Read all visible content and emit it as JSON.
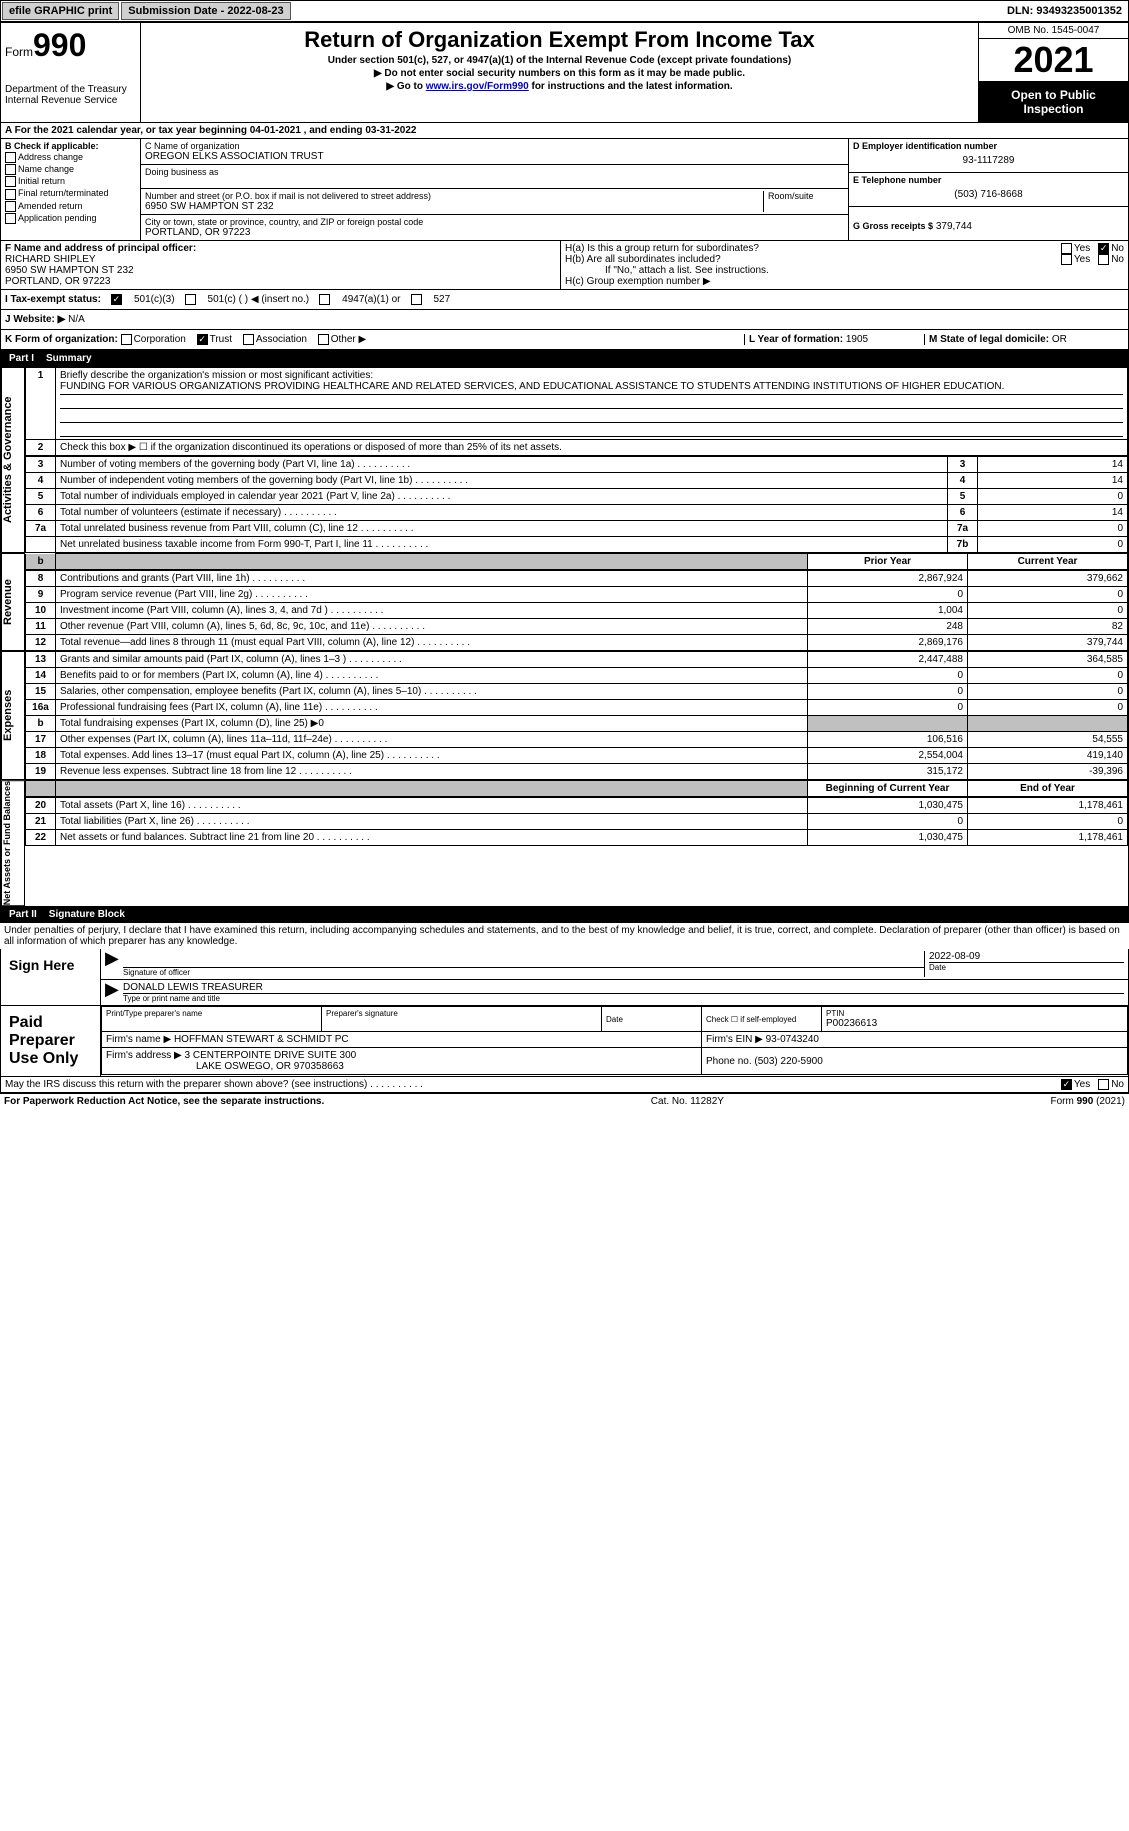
{
  "top": {
    "efile": "efile GRAPHIC print",
    "sub_date_label": "Submission Date - 2022-08-23",
    "dln": "DLN: 93493235001352"
  },
  "header": {
    "form_label": "Form",
    "form_num": "990",
    "dept": "Department of the Treasury Internal Revenue Service",
    "title": "Return of Organization Exempt From Income Tax",
    "sub1": "Under section 501(c), 527, or 4947(a)(1) of the Internal Revenue Code (except private foundations)",
    "sub2": "▶ Do not enter social security numbers on this form as it may be made public.",
    "sub3_pre": "▶ Go to ",
    "sub3_link": "www.irs.gov/Form990",
    "sub3_post": " for instructions and the latest information.",
    "omb": "OMB No. 1545-0047",
    "year": "2021",
    "open": "Open to Public Inspection"
  },
  "a": {
    "text": "A For the 2021 calendar year, or tax year beginning 04-01-2021   , and ending 03-31-2022"
  },
  "b": {
    "label": "B Check if applicable:",
    "addr": "Address change",
    "name": "Name change",
    "init": "Initial return",
    "final": "Final return/terminated",
    "amend": "Amended return",
    "app": "Application pending"
  },
  "c": {
    "name_label": "C Name of organization",
    "name": "OREGON ELKS ASSOCIATION TRUST",
    "dba_label": "Doing business as",
    "dba": "",
    "street_label": "Number and street (or P.O. box if mail is not delivered to street address)",
    "street": "6950 SW HAMPTON ST 232",
    "room_label": "Room/suite",
    "city_label": "City or town, state or province, country, and ZIP or foreign postal code",
    "city": "PORTLAND, OR  97223"
  },
  "d": {
    "ein_label": "D Employer identification number",
    "ein": "93-1117289",
    "phone_label": "E Telephone number",
    "phone": "(503) 716-8668",
    "gross_label": "G Gross receipts $",
    "gross": "379,744"
  },
  "f": {
    "label": "F Name and address of principal officer:",
    "name": "RICHARD SHIPLEY",
    "street": "6950 SW HAMPTON ST 232",
    "city": "PORTLAND, OR  97223"
  },
  "h": {
    "a": "H(a)  Is this a group return for subordinates?",
    "b": "H(b)  Are all subordinates included?",
    "b_note": "If \"No,\" attach a list. See instructions.",
    "c": "H(c)  Group exemption number ▶",
    "yes": "Yes",
    "no": "No"
  },
  "i": {
    "label": "I  Tax-exempt status:",
    "o1": "501(c)(3)",
    "o2": "501(c) (  ) ◀ (insert no.)",
    "o3": "4947(a)(1) or",
    "o4": "527"
  },
  "j": {
    "label": "J  Website: ▶",
    "val": "N/A"
  },
  "k": {
    "label": "K Form of organization:",
    "corp": "Corporation",
    "trust": "Trust",
    "assoc": "Association",
    "other": "Other ▶",
    "l_label": "L Year of formation:",
    "l_val": "1905",
    "m_label": "M State of legal domicile:",
    "m_val": "OR"
  },
  "part1": {
    "num": "Part I",
    "title": "Summary"
  },
  "summary": {
    "l1_label": "Briefly describe the organization's mission or most significant activities:",
    "l1_text": "FUNDING FOR VARIOUS ORGANIZATIONS PROVIDING HEALTHCARE AND RELATED SERVICES, AND EDUCATIONAL ASSISTANCE TO STUDENTS ATTENDING INSTITUTIONS OF HIGHER EDUCATION.",
    "l2": "Check this box ▶ ☐ if the organization discontinued its operations or disposed of more than 25% of its net assets.",
    "rows": [
      {
        "n": "3",
        "d": "Number of voting members of the governing body (Part VI, line 1a)",
        "lbl": "3",
        "v": "14"
      },
      {
        "n": "4",
        "d": "Number of independent voting members of the governing body (Part VI, line 1b)",
        "lbl": "4",
        "v": "14"
      },
      {
        "n": "5",
        "d": "Total number of individuals employed in calendar year 2021 (Part V, line 2a)",
        "lbl": "5",
        "v": "0"
      },
      {
        "n": "6",
        "d": "Total number of volunteers (estimate if necessary)",
        "lbl": "6",
        "v": "14"
      },
      {
        "n": "7a",
        "d": "Total unrelated business revenue from Part VIII, column (C), line 12",
        "lbl": "7a",
        "v": "0"
      },
      {
        "n": "",
        "d": "Net unrelated business taxable income from Form 990-T, Part I, line 11",
        "lbl": "7b",
        "v": "0"
      }
    ],
    "prior_hdr": "Prior Year",
    "cur_hdr": "Current Year",
    "rev_rows": [
      {
        "n": "8",
        "d": "Contributions and grants (Part VIII, line 1h)",
        "p": "2,867,924",
        "c": "379,662"
      },
      {
        "n": "9",
        "d": "Program service revenue (Part VIII, line 2g)",
        "p": "0",
        "c": "0"
      },
      {
        "n": "10",
        "d": "Investment income (Part VIII, column (A), lines 3, 4, and 7d )",
        "p": "1,004",
        "c": "0"
      },
      {
        "n": "11",
        "d": "Other revenue (Part VIII, column (A), lines 5, 6d, 8c, 9c, 10c, and 11e)",
        "p": "248",
        "c": "82"
      },
      {
        "n": "12",
        "d": "Total revenue—add lines 8 through 11 (must equal Part VIII, column (A), line 12)",
        "p": "2,869,176",
        "c": "379,744"
      }
    ],
    "exp_rows": [
      {
        "n": "13",
        "d": "Grants and similar amounts paid (Part IX, column (A), lines 1–3 )",
        "p": "2,447,488",
        "c": "364,585"
      },
      {
        "n": "14",
        "d": "Benefits paid to or for members (Part IX, column (A), line 4)",
        "p": "0",
        "c": "0"
      },
      {
        "n": "15",
        "d": "Salaries, other compensation, employee benefits (Part IX, column (A), lines 5–10)",
        "p": "0",
        "c": "0"
      },
      {
        "n": "16a",
        "d": "Professional fundraising fees (Part IX, column (A), line 11e)",
        "p": "0",
        "c": "0"
      },
      {
        "n": "b",
        "d": "Total fundraising expenses (Part IX, column (D), line 25) ▶0",
        "p": "",
        "c": "",
        "shaded": true
      },
      {
        "n": "17",
        "d": "Other expenses (Part IX, column (A), lines 11a–11d, 11f–24e)",
        "p": "106,516",
        "c": "54,555"
      },
      {
        "n": "18",
        "d": "Total expenses. Add lines 13–17 (must equal Part IX, column (A), line 25)",
        "p": "2,554,004",
        "c": "419,140"
      },
      {
        "n": "19",
        "d": "Revenue less expenses. Subtract line 18 from line 12",
        "p": "315,172",
        "c": "-39,396"
      }
    ],
    "beg_hdr": "Beginning of Current Year",
    "end_hdr": "End of Year",
    "na_rows": [
      {
        "n": "20",
        "d": "Total assets (Part X, line 16)",
        "p": "1,030,475",
        "c": "1,178,461"
      },
      {
        "n": "21",
        "d": "Total liabilities (Part X, line 26)",
        "p": "0",
        "c": "0"
      },
      {
        "n": "22",
        "d": "Net assets or fund balances. Subtract line 21 from line 20",
        "p": "1,030,475",
        "c": "1,178,461"
      }
    ],
    "side_ag": "Activities & Governance",
    "side_rev": "Revenue",
    "side_exp": "Expenses",
    "side_na": "Net Assets or Fund Balances"
  },
  "part2": {
    "num": "Part II",
    "title": "Signature Block"
  },
  "penalties": "Under penalties of perjury, I declare that I have examined this return, including accompanying schedules and statements, and to the best of my knowledge and belief, it is true, correct, and complete. Declaration of preparer (other than officer) is based on all information of which preparer has any knowledge.",
  "sign": {
    "here": "Sign Here",
    "sig_label": "Signature of officer",
    "date": "2022-08-09",
    "date_label": "Date",
    "name": "DONALD LEWIS TREASURER",
    "name_label": "Type or print name and title"
  },
  "paid": {
    "label": "Paid Preparer Use Only",
    "print_label": "Print/Type preparer's name",
    "sig_label": "Preparer's signature",
    "date_label": "Date",
    "check_label": "Check ☐ if self-employed",
    "ptin_label": "PTIN",
    "ptin": "P00236613",
    "firm_name_label": "Firm's name   ▶",
    "firm_name": "HOFFMAN STEWART & SCHMIDT PC",
    "firm_ein_label": "Firm's EIN ▶",
    "firm_ein": "93-0743240",
    "firm_addr_label": "Firm's address ▶",
    "firm_addr1": "3 CENTERPOINTE DRIVE SUITE 300",
    "firm_addr2": "LAKE OSWEGO, OR  970358663",
    "phone_label": "Phone no.",
    "phone": "(503) 220-5900"
  },
  "discuss": {
    "text": "May the IRS discuss this return with the preparer shown above? (see instructions)",
    "yes": "Yes",
    "no": "No"
  },
  "footer": {
    "left": "For Paperwork Reduction Act Notice, see the separate instructions.",
    "center": "Cat. No. 11282Y",
    "right": "Form 990 (2021)"
  }
}
